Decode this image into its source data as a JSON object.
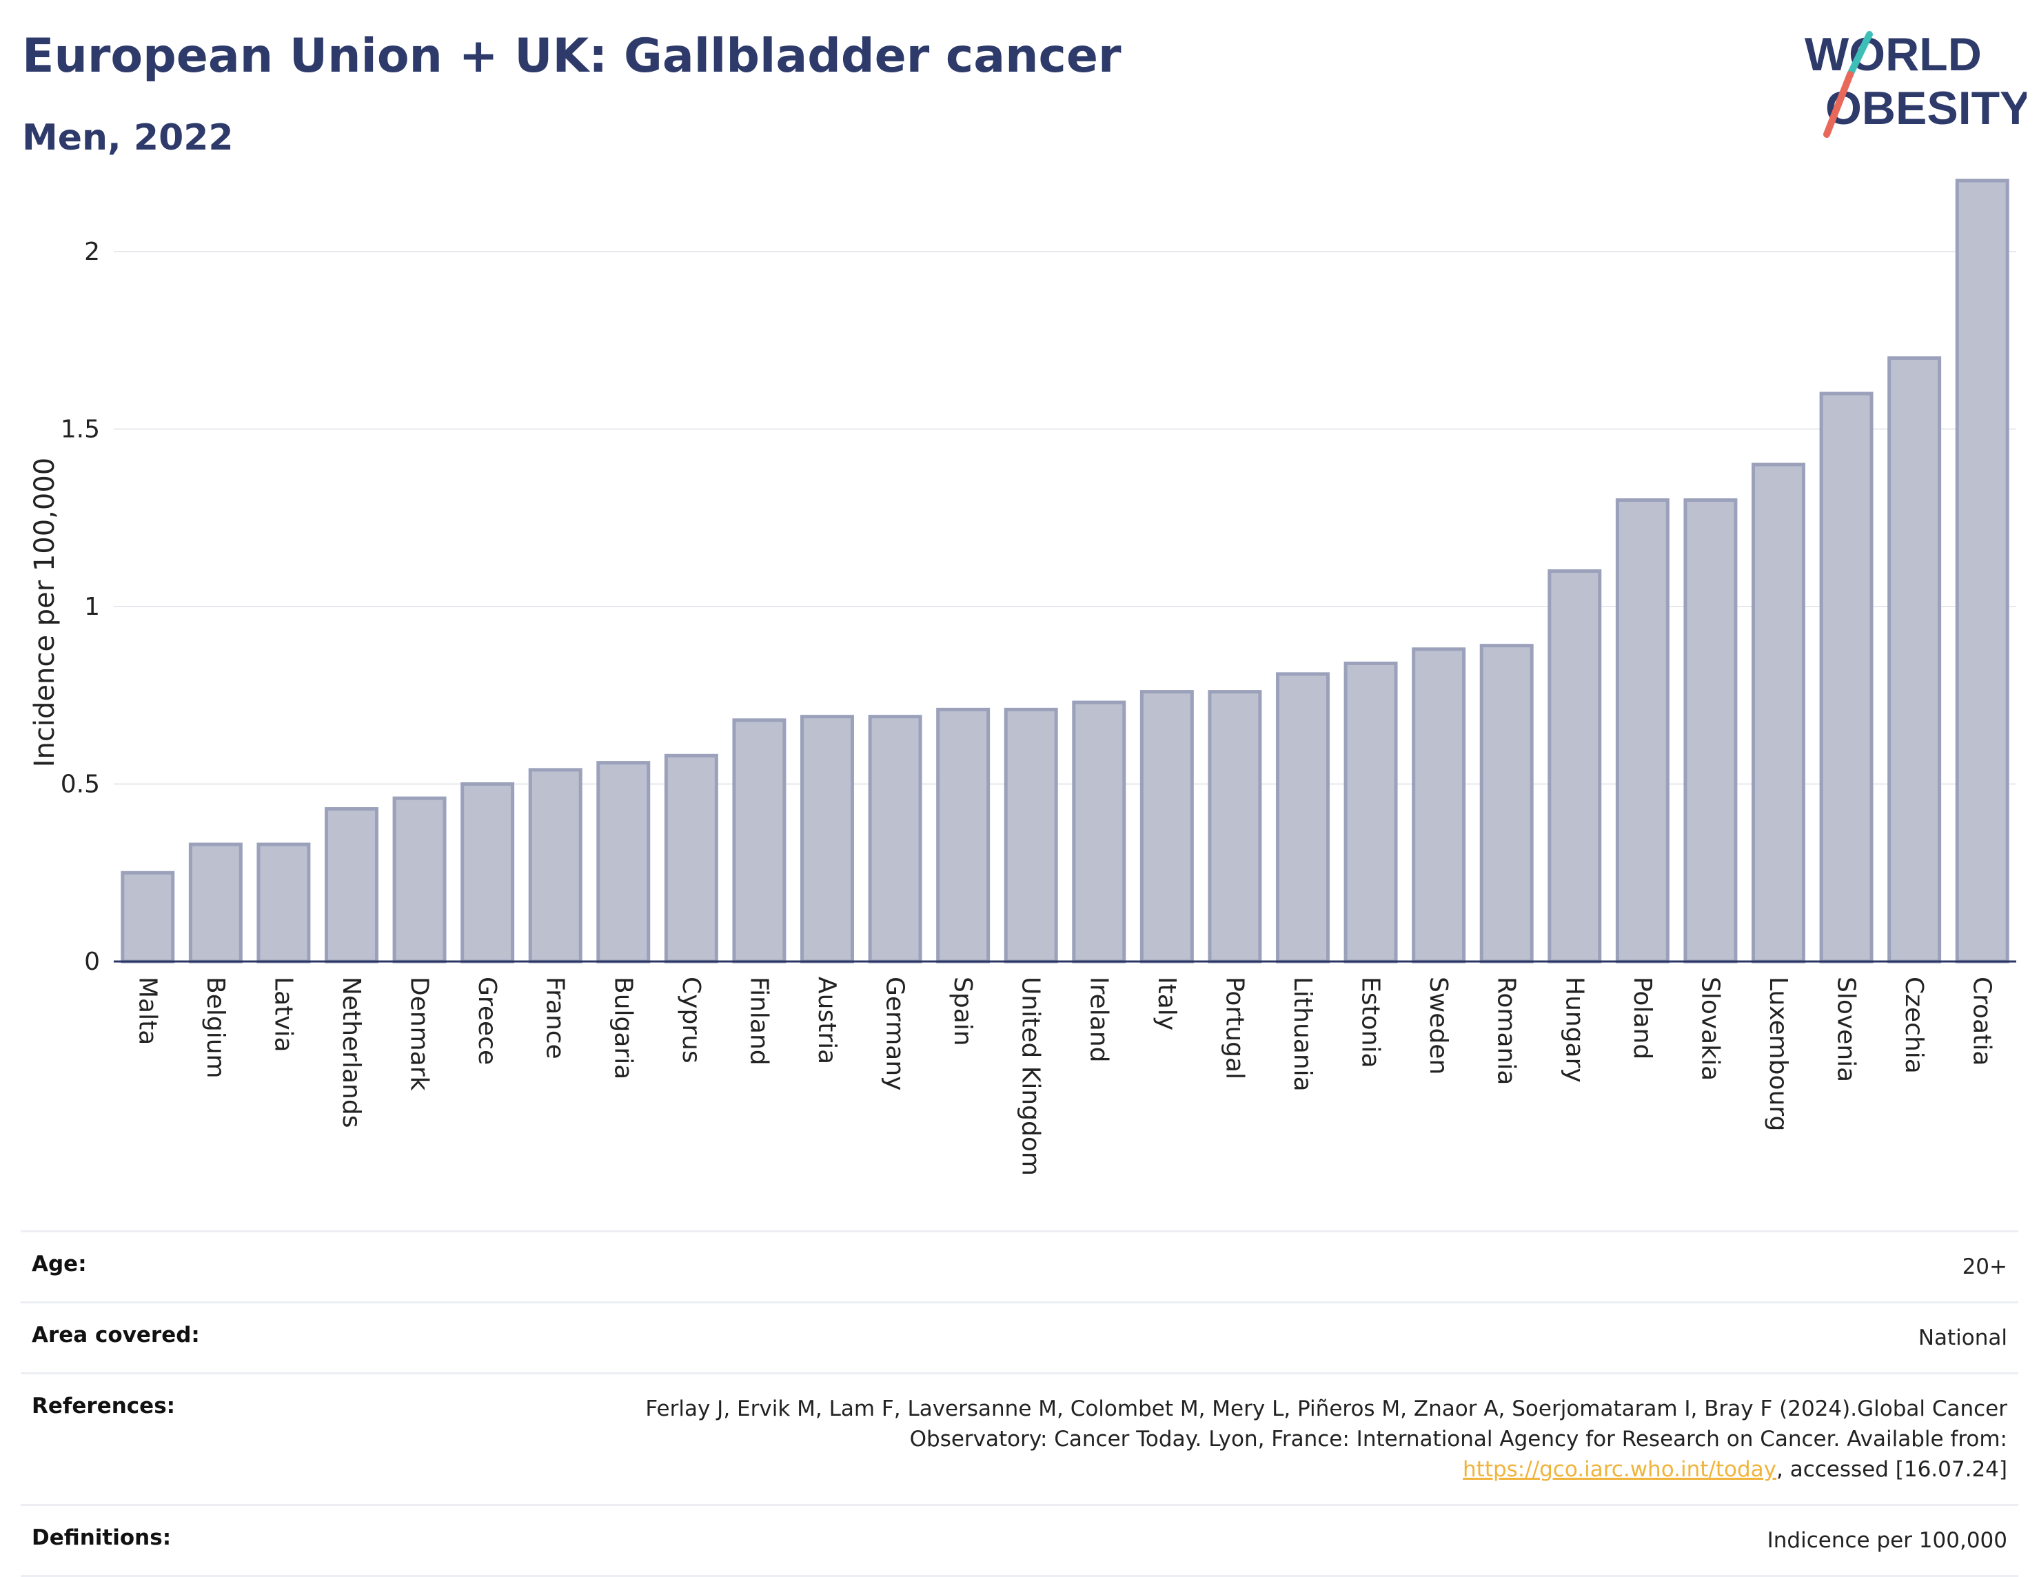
{
  "header": {
    "title": "European Union + UK: Gallbladder cancer",
    "subtitle": "Men, 2022"
  },
  "logo": {
    "line1": "WORLD",
    "line2": "OBESITY"
  },
  "colors": {
    "bar_fill": "#bcc0cf",
    "bar_stroke": "#9ba1bb",
    "title": "#2d3a6a",
    "accent_teal": "#3dbfb7",
    "accent_red": "#e8685a",
    "link": "#f0b43c"
  },
  "chart_data": {
    "type": "bar",
    "ylabel": "Incidence per 100,000",
    "xlabel": "",
    "ylim": [
      0,
      2.2
    ],
    "yticks": [
      "0",
      "0.5",
      "1",
      "1.5",
      "2"
    ],
    "grid": true,
    "categories": [
      "Malta",
      "Belgium",
      "Latvia",
      "Netherlands",
      "Denmark",
      "Greece",
      "France",
      "Bulgaria",
      "Cyprus",
      "Finland",
      "Austria",
      "Germany",
      "Spain",
      "United Kingdom",
      "Ireland",
      "Italy",
      "Portugal",
      "Lithuania",
      "Estonia",
      "Sweden",
      "Romania",
      "Hungary",
      "Poland",
      "Slovakia",
      "Luxembourg",
      "Slovenia",
      "Czechia",
      "Croatia"
    ],
    "values": [
      0.25,
      0.33,
      0.33,
      0.43,
      0.46,
      0.5,
      0.54,
      0.56,
      0.58,
      0.68,
      0.69,
      0.69,
      0.71,
      0.71,
      0.73,
      0.76,
      0.76,
      0.81,
      0.84,
      0.88,
      0.89,
      1.1,
      1.3,
      1.3,
      1.4,
      1.6,
      1.7,
      2.2
    ]
  },
  "meta": {
    "age_label": "Age:",
    "age_value": "20+",
    "area_label": "Area covered:",
    "area_value": "National",
    "references_label": "References:",
    "references_text_1": "Ferlay J, Ervik M, Lam F, Laversanne M, Colombet M, Mery L, Piñeros M, Znaor A, Soerjomataram I, Bray F (2024).Global Cancer Observatory: Cancer Today. Lyon, France: International Agency for Research on Cancer. Available from: ",
    "references_link": "https://gco.iarc.who.int/today",
    "references_text_2": ", accessed [16.07.24]",
    "definitions_label": "Definitions:",
    "definitions_value": "Indicence per 100,000"
  }
}
